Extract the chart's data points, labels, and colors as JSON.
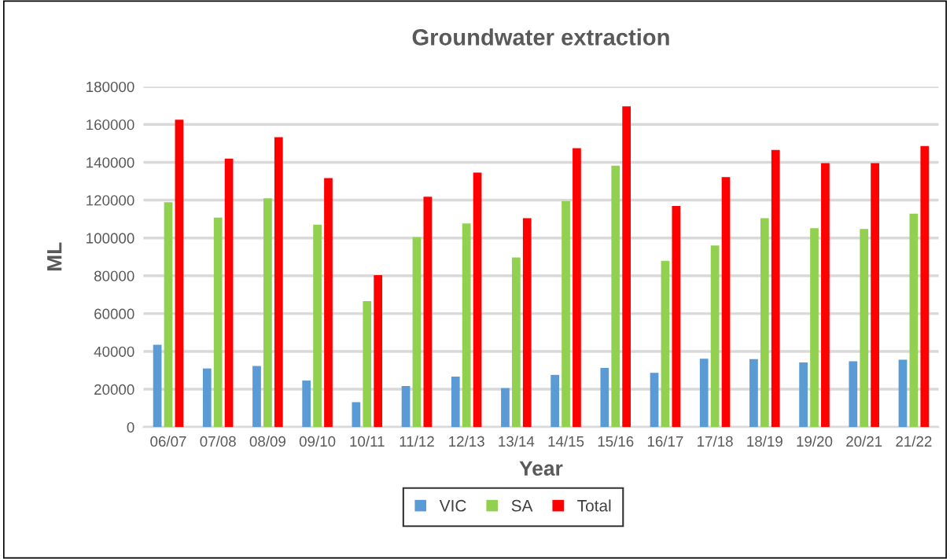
{
  "chart_data": {
    "type": "bar",
    "title": "Groundwater extraction",
    "xlabel": "Year",
    "ylabel": "ML",
    "categories": [
      "06/07",
      "07/08",
      "08/09",
      "09/10",
      "10/11",
      "11/12",
      "12/13",
      "13/14",
      "14/15",
      "15/16",
      "16/17",
      "17/18",
      "18/19",
      "19/20",
      "20/21",
      "21/22"
    ],
    "series": [
      {
        "name": "VIC",
        "color": "#5b9bd5",
        "values": [
          43500,
          31000,
          32300,
          24600,
          13200,
          21700,
          26700,
          20600,
          27600,
          31300,
          28700,
          36100,
          35900,
          34200,
          34800,
          35600
        ]
      },
      {
        "name": "SA",
        "color": "#92d050",
        "values": [
          118900,
          110800,
          120900,
          107000,
          66600,
          100400,
          107600,
          89700,
          119500,
          138200,
          87900,
          96000,
          110500,
          105200,
          104700,
          112800
        ]
      },
      {
        "name": "Total",
        "color": "#ff0000",
        "values": [
          162500,
          141900,
          153300,
          131700,
          80300,
          121800,
          134600,
          110500,
          147500,
          169600,
          116900,
          132200,
          146500,
          139600,
          139600,
          148600
        ]
      }
    ],
    "ylim": [
      0,
      180000
    ],
    "yticks": [
      0,
      20000,
      40000,
      60000,
      80000,
      100000,
      120000,
      140000,
      160000,
      180000
    ],
    "grid": "y",
    "legend": "bottom"
  }
}
